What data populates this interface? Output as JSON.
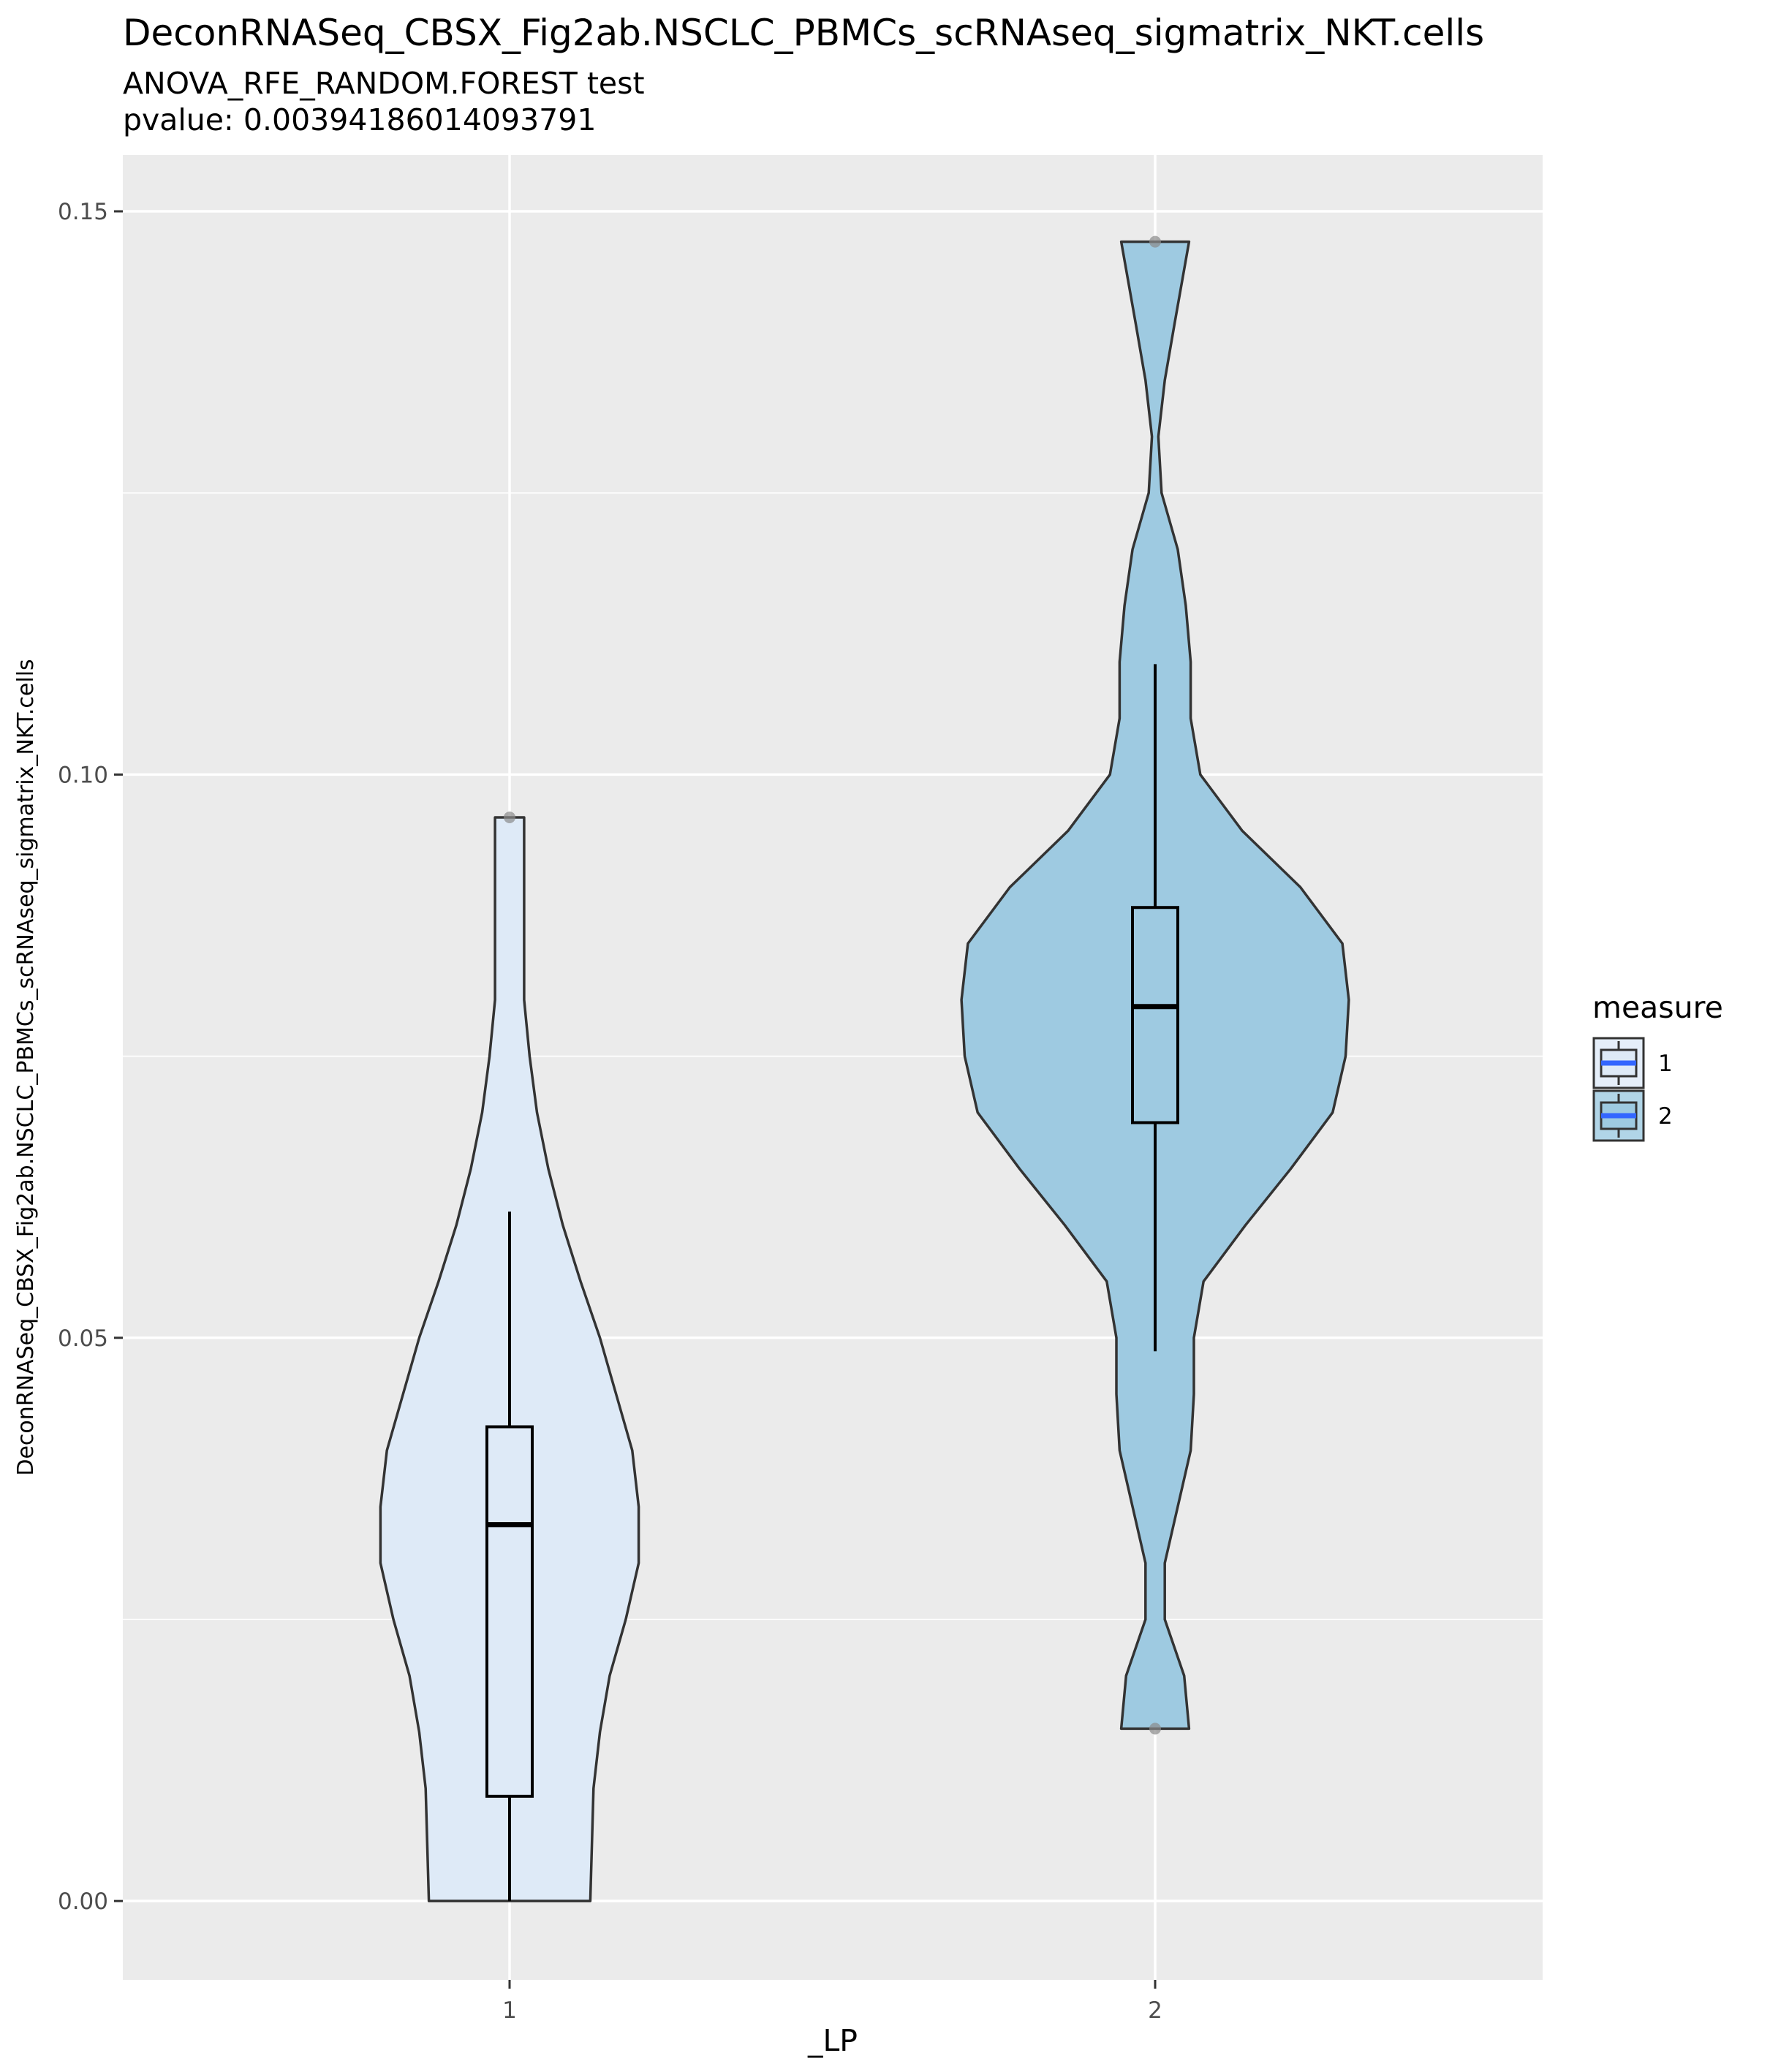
{
  "chart_data": {
    "type": "violin",
    "title": "DeconRNASeq_CBSX_Fig2ab.NSCLC_PBMCs_scRNAseq_sigmatrix_NKT.cells",
    "subtitle_lines": [
      "ANOVA_RFE_RANDOM.FOREST test",
      "pvalue: 0.00394186014093791"
    ],
    "xlabel": "_LP",
    "ylabel": "DeconRNASeq_CBSX_Fig2ab.NSCLC_PBMCs_scRNAseq_sigmatrix_NKT.cells",
    "categories": [
      "1",
      "2"
    ],
    "ylim": [
      -0.007,
      0.155
    ],
    "yticks": [
      0.0,
      0.05,
      0.1,
      0.15
    ],
    "ytick_labels": [
      "0.00",
      "0.05",
      "0.10",
      "0.15"
    ],
    "grid": true,
    "legend": {
      "title": "measure",
      "position": "right",
      "entries": [
        "1",
        "2"
      ]
    },
    "series": [
      {
        "name": "1",
        "color": "#deeaf7",
        "box": {
          "whisker_low": 0.0,
          "q1": 0.0093,
          "median": 0.0334,
          "q3": 0.0421,
          "whisker_high": 0.0612
        },
        "outliers": [
          0.0962
        ],
        "violin": {
          "y": [
            0.0,
            0.005,
            0.01,
            0.015,
            0.02,
            0.025,
            0.03,
            0.035,
            0.04,
            0.045,
            0.05,
            0.055,
            0.06,
            0.065,
            0.07,
            0.075,
            0.08,
            0.085,
            0.09,
            0.0962
          ],
          "half_width": [
            0.25,
            0.255,
            0.26,
            0.28,
            0.31,
            0.36,
            0.4,
            0.4,
            0.38,
            0.33,
            0.28,
            0.22,
            0.165,
            0.12,
            0.085,
            0.062,
            0.045,
            0.045,
            0.045,
            0.045
          ]
        }
      },
      {
        "name": "2",
        "color": "#9ecae1",
        "box": {
          "whisker_low": 0.0488,
          "q1": 0.0691,
          "median": 0.0794,
          "q3": 0.0882,
          "whisker_high": 0.1098
        },
        "outliers": [
          0.0153,
          0.1473
        ],
        "violin": {
          "y": [
            0.0153,
            0.02,
            0.025,
            0.03,
            0.035,
            0.04,
            0.045,
            0.05,
            0.055,
            0.06,
            0.065,
            0.07,
            0.075,
            0.08,
            0.085,
            0.09,
            0.095,
            0.1,
            0.105,
            0.11,
            0.115,
            0.12,
            0.125,
            0.13,
            0.135,
            0.14,
            0.1473
          ],
          "half_width": [
            0.105,
            0.09,
            0.03,
            0.03,
            0.07,
            0.11,
            0.12,
            0.12,
            0.15,
            0.28,
            0.42,
            0.55,
            0.59,
            0.6,
            0.58,
            0.45,
            0.27,
            0.14,
            0.11,
            0.11,
            0.095,
            0.07,
            0.02,
            0.01,
            0.03,
            0.06,
            0.105
          ]
        }
      }
    ]
  }
}
